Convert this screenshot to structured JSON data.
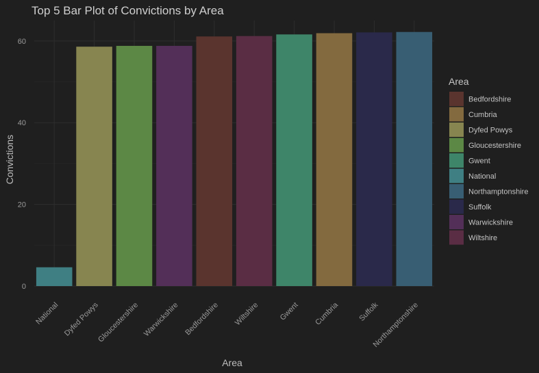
{
  "chart_data": {
    "type": "bar",
    "title": "Top 5 Bar Plot of Convictions by Area",
    "xlabel": "Area",
    "ylabel": "Convictions",
    "ylim": [
      0,
      65
    ],
    "yticks": [
      0,
      20,
      40,
      60
    ],
    "grid": true,
    "categories": [
      "National",
      "Dyfed Powys",
      "Gloucestershire",
      "Warwickshire",
      "Bedfordshire",
      "Wiltshire",
      "Gwent",
      "Cumbria",
      "Suffolk",
      "Northamptonshire"
    ],
    "values": [
      4.6,
      58.6,
      58.8,
      58.8,
      61.1,
      61.2,
      61.6,
      61.9,
      62.1,
      62.2
    ],
    "legend": {
      "title": "Area",
      "position": "right",
      "items": [
        {
          "label": "Bedfordshire",
          "color": "#5a342e"
        },
        {
          "label": "Cumbria",
          "color": "#836a3f"
        },
        {
          "label": "Dyfed Powys",
          "color": "#878550"
        },
        {
          "label": "Gloucestershire",
          "color": "#5c8845"
        },
        {
          "label": "Gwent",
          "color": "#3e8569"
        },
        {
          "label": "National",
          "color": "#3f7f83"
        },
        {
          "label": "Northamptonshire",
          "color": "#385e73"
        },
        {
          "label": "Suffolk",
          "color": "#2a294a"
        },
        {
          "label": "Warwickshire",
          "color": "#532f58"
        },
        {
          "label": "Wiltshire",
          "color": "#5a2d44"
        }
      ]
    }
  }
}
